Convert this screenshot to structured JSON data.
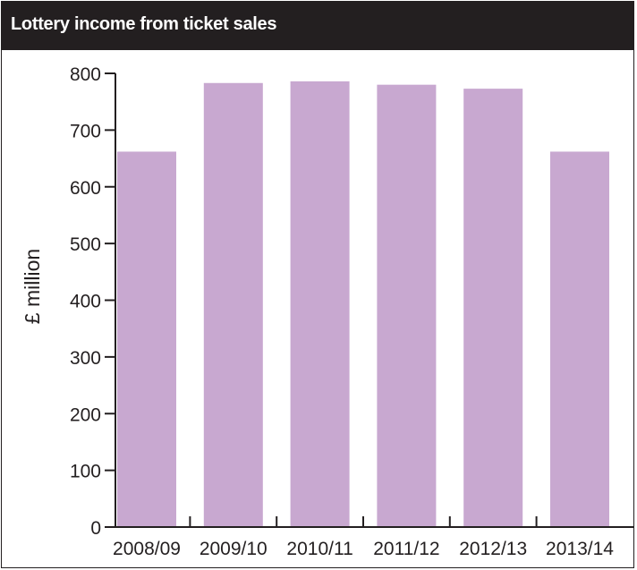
{
  "chart_data": {
    "type": "bar",
    "title": "Lottery income from ticket sales",
    "ylabel": "£ million",
    "xlabel": "",
    "categories": [
      "2008/09",
      "2009/10",
      "2010/11",
      "2011/12",
      "2012/13",
      "2013/14"
    ],
    "values": [
      662,
      783,
      786,
      780,
      773,
      662
    ],
    "ylim": [
      0,
      800
    ],
    "yticks": [
      0,
      100,
      200,
      300,
      400,
      500,
      600,
      700,
      800
    ],
    "grid": false,
    "colors": {
      "bar": "#c8a8d0",
      "axis": "#231f20",
      "title_bg": "#231f20",
      "title_text": "#ffffff"
    }
  }
}
